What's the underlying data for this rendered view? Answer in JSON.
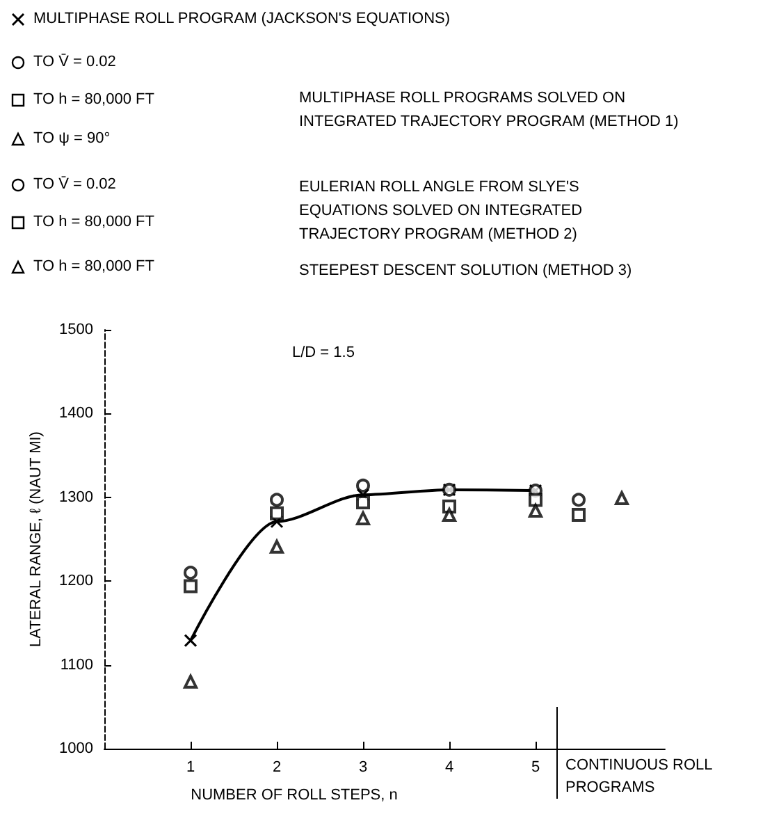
{
  "chart_data": {
    "type": "scatter",
    "xlabel": "NUMBER OF ROLL STEPS, n",
    "ylabel": "LATERAL RANGE, ℓ (NAUT MI)",
    "xlim": [
      0,
      6.5
    ],
    "xticks": [
      1,
      2,
      3,
      4,
      5
    ],
    "ylim": [
      1000,
      1500
    ],
    "yticks": [
      1000,
      1100,
      1200,
      1300,
      1400,
      1500
    ],
    "grid": false,
    "legend": "top left",
    "series": [
      {
        "name": "MULTIPHASE ROLL PROGRAM (JACKSON'S EQUATIONS)",
        "type": "line",
        "marker": "cross",
        "color": "#000000",
        "x": [
          1,
          2,
          3,
          4,
          5
        ],
        "values": [
          1129,
          1271,
          1303,
          1309,
          1308
        ]
      },
      {
        "name": "TO V̄ = 0.02",
        "marker": "circle",
        "color": "#000000",
        "x": [
          1,
          2,
          3,
          4,
          5
        ],
        "values": [
          1210,
          1297,
          1314,
          1309,
          1308
        ]
      },
      {
        "name": "TO h = 80,000 FT",
        "marker": "square",
        "color": "#000000",
        "x": [
          1,
          2,
          3,
          4,
          5
        ],
        "values": [
          1194,
          1281,
          1294,
          1289,
          1297
        ]
      },
      {
        "name": "TO ψ = 90°",
        "marker": "triangle",
        "color": "#000000",
        "x": [
          1,
          2,
          3,
          4,
          5
        ],
        "values": [
          1080,
          1241,
          1275,
          1279,
          1284
        ]
      },
      {
        "name": "TO V̄ = 0.02",
        "marker": "circle",
        "color": "#000000",
        "x": [
          5.5
        ],
        "values": [
          1297
        ]
      },
      {
        "name": "TO h = 80,000 FT",
        "marker": "square",
        "color": "#000000",
        "x": [
          5.5
        ],
        "values": [
          1279
        ]
      },
      {
        "name": "TO h = 80,000 FT",
        "marker": "triangle",
        "color": "#000000",
        "x": [
          6
        ],
        "values": [
          1299
        ]
      }
    ],
    "ref_lines": [
      {
        "axis": "x",
        "value": 5.25,
        "label": "CONTINUOUS ROLL\nPROGRAMS"
      }
    ],
    "annotations": [
      "L/D = 1.5",
      "MULTIPHASE ROLL PROGRAMS SOLVED ON\nINTEGRATED TRAJECTORY PROGRAM (METHOD 1)",
      "EULERIAN ROLL ANGLE FROM SLYE'S\nEQUATIONS SOLVED ON INTEGRATED\nTRAJECTORY PROGRAM (METHOD 2)",
      "STEEPEST DESCENT SOLUTION (METHOD 3)"
    ]
  }
}
